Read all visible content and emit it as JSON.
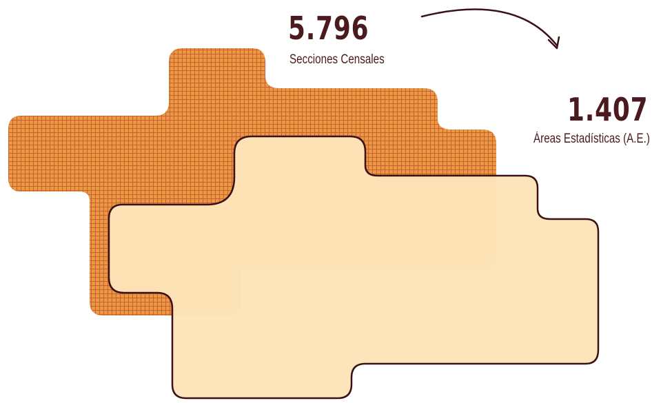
{
  "stats": {
    "secciones": {
      "value": "5.796",
      "label": "Secciones Censales"
    },
    "areas": {
      "value": "1.407",
      "label": "Áreas Estadísticas (A.E.)"
    }
  },
  "colors": {
    "text": "#4a1a1e",
    "orange_fill": "#e99a3f",
    "orange_grid": "#c8563a",
    "light_fill": "#fbe3b6",
    "dark_grid": "#3a1216"
  },
  "shapes": [
    {
      "name": "secciones-censales-shape",
      "pattern": "fine-grid"
    },
    {
      "name": "areas-estadisticas-shape",
      "pattern": "coarse-grid"
    }
  ]
}
